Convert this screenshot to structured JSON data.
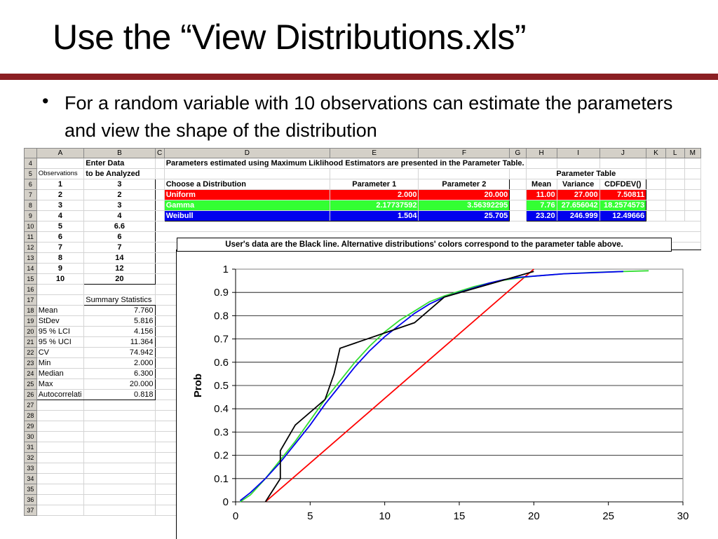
{
  "slide": {
    "title": "Use the “View Distributions.xls”",
    "bullet": "For a random variable with 10 observations can estimate the parameters and view the shape of the distribution",
    "accent_color": "#8b1f23"
  },
  "sheet": {
    "columns": [
      "A",
      "B",
      "C",
      "D",
      "E",
      "F",
      "G",
      "H",
      "I",
      "J",
      "K",
      "L",
      "M"
    ],
    "rows": [
      "4",
      "5",
      "6",
      "7",
      "8",
      "9",
      "10",
      "11",
      "12",
      "13",
      "14",
      "15",
      "16",
      "17",
      "18",
      "19",
      "20",
      "21",
      "22",
      "23",
      "24",
      "25",
      "26",
      "27",
      "28",
      "29",
      "30",
      "31",
      "32",
      "33",
      "34",
      "35",
      "36",
      "37"
    ],
    "enter_data": "Enter Data",
    "obs_header": "Observations",
    "analyze_header": "to be Analyzed",
    "observations": [
      {
        "n": "1",
        "v": "3"
      },
      {
        "n": "2",
        "v": "2"
      },
      {
        "n": "3",
        "v": "3"
      },
      {
        "n": "4",
        "v": "4"
      },
      {
        "n": "5",
        "v": "6.6"
      },
      {
        "n": "6",
        "v": "6"
      },
      {
        "n": "7",
        "v": "7"
      },
      {
        "n": "8",
        "v": "14"
      },
      {
        "n": "9",
        "v": "12"
      },
      {
        "n": "10",
        "v": "20"
      }
    ],
    "summary_title": "Summary Statistics",
    "summary": [
      {
        "label": "Mean",
        "value": "7.760"
      },
      {
        "label": "StDev",
        "value": "5.816"
      },
      {
        "label": "95 % LCI",
        "value": "4.156"
      },
      {
        "label": "95 % UCI",
        "value": "11.364"
      },
      {
        "label": "CV",
        "value": "74.942"
      },
      {
        "label": "Min",
        "value": "2.000"
      },
      {
        "label": "Median",
        "value": "6.300"
      },
      {
        "label": "Max",
        "value": "20.000"
      },
      {
        "label": "Autocorrelati",
        "value": "0.818"
      }
    ],
    "mle_note": "Parameters estimated using Maximum Liklihood Estimators are presented in the Parameter Table.",
    "param_table_title": "Parameter Table",
    "param_headers": [
      "Choose a Distribution",
      "Parameter 1",
      "Parameter 2",
      "Mean",
      "Variance",
      "CDFDEV()"
    ],
    "param_rows": [
      {
        "name": "Uniform",
        "p1": "2.000",
        "p2": "20.000",
        "mean": "11.00",
        "var": "27.000",
        "cdf": "7.50811",
        "color": "#ff0000"
      },
      {
        "name": "Gamma",
        "p1": "2.17737592",
        "p2": "3.56392295",
        "mean": "7.76",
        "var": "27.656042",
        "cdf": "18.2574573",
        "color": "#33ff33"
      },
      {
        "name": "Weibull",
        "p1": "1.504",
        "p2": "25.705",
        "mean": "23.20",
        "var": "246.999",
        "cdf": "12.49666",
        "color": "#0000ee"
      }
    ]
  },
  "chart_caption": "User's data are the Black line.  Alternative distributions' colors correspond to the parameter table above.",
  "chart_data": {
    "type": "line",
    "title": "",
    "xlabel": "",
    "ylabel": "Prob",
    "xlim": [
      0,
      30
    ],
    "ylim": [
      0,
      1
    ],
    "xticks": [
      0,
      5,
      10,
      15,
      20,
      25,
      30
    ],
    "yticks": [
      0,
      0.1,
      0.2,
      0.3,
      0.4,
      0.5,
      0.6,
      0.7,
      0.8,
      0.9,
      1
    ],
    "grid": "horizontal",
    "series": [
      {
        "color": "#ff0000",
        "x": [
          2,
          20
        ],
        "y": [
          0,
          1
        ]
      },
      {
        "color": "#33dd33",
        "x": [
          0.3,
          1,
          2,
          3,
          4,
          5,
          6,
          7,
          8,
          9,
          10,
          11,
          12,
          13,
          14,
          15,
          16,
          17,
          18,
          19,
          20,
          22,
          24,
          26,
          27.7
        ],
        "y": [
          0,
          0.03,
          0.1,
          0.18,
          0.26,
          0.35,
          0.44,
          0.52,
          0.6,
          0.67,
          0.73,
          0.78,
          0.82,
          0.86,
          0.885,
          0.905,
          0.925,
          0.94,
          0.953,
          0.962,
          0.97,
          0.98,
          0.986,
          0.99,
          0.993
        ]
      },
      {
        "color": "#0000ee",
        "x": [
          0.3,
          1,
          2,
          3,
          4,
          5,
          6,
          7,
          8,
          9,
          10,
          11,
          12,
          13,
          14,
          15,
          16,
          17,
          18,
          19,
          20,
          21,
          22,
          24,
          26
        ],
        "y": [
          0.005,
          0.04,
          0.1,
          0.17,
          0.25,
          0.33,
          0.42,
          0.5,
          0.58,
          0.65,
          0.71,
          0.76,
          0.81,
          0.85,
          0.88,
          0.9,
          0.92,
          0.94,
          0.955,
          0.965,
          0.97,
          0.975,
          0.98,
          0.985,
          0.99
        ]
      },
      {
        "color": "#000000",
        "x": [
          2,
          3,
          3,
          4,
          6,
          6.6,
          7,
          12,
          14,
          20
        ],
        "y": [
          0,
          0.1,
          0.22,
          0.33,
          0.44,
          0.55,
          0.66,
          0.77,
          0.88,
          0.99
        ]
      }
    ]
  }
}
